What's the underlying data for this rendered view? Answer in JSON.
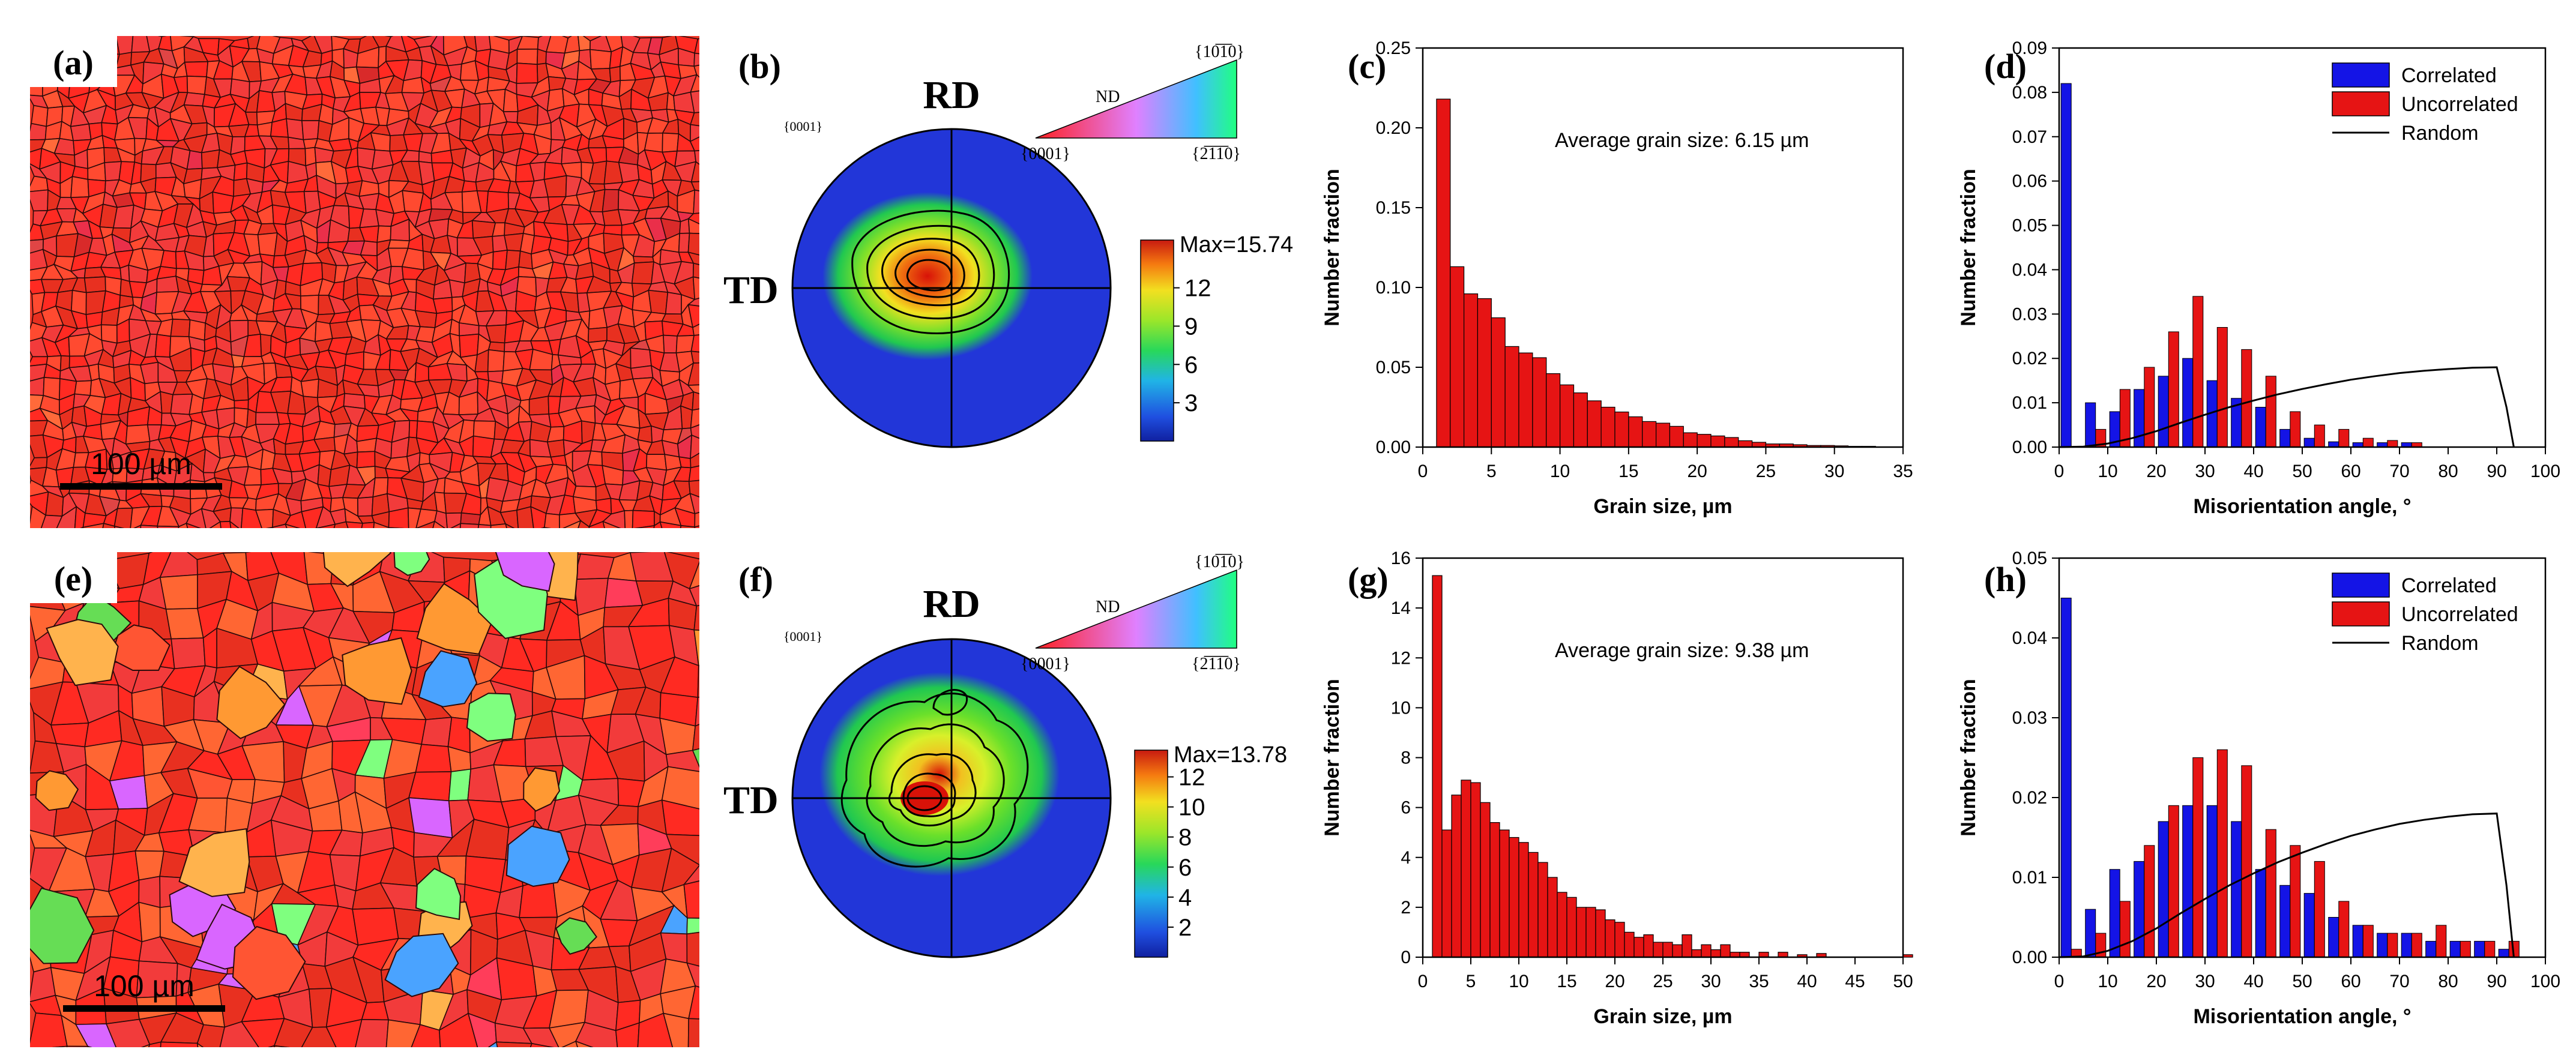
{
  "colors": {
    "correlated": "#1414e6",
    "uncorrelated": "#e61414",
    "grain_bar": "#e61414",
    "random_line": "#000000"
  },
  "panels": [
    {
      "id": "a",
      "label": "(a)",
      "kind": "ebsd-map",
      "scale_bar": "100 µm",
      "palette": [
        "#ff2a22",
        "#f23b3b",
        "#e83020",
        "#ff4a30",
        "#d92a2a",
        "#ff5533",
        "#f04040",
        "#e04545",
        "#ff6a3a",
        "#ea2f4a"
      ]
    },
    {
      "id": "e",
      "label": "(e)",
      "kind": "ebsd-map",
      "scale_bar": "100 µm",
      "palette": [
        "#ff2a22",
        "#f23b3b",
        "#e83020",
        "#ff6633",
        "#ff9933",
        "#ffb34d",
        "#ff3d5a",
        "#7fff7f",
        "#66dd55",
        "#4aa3ff",
        "#d966ff",
        "#ff5533"
      ]
    },
    {
      "id": "b",
      "label": "(b)",
      "kind": "pole-figure",
      "rd": "RD",
      "td": "TD",
      "pole": "{0001}",
      "key_nd": "ND",
      "key_top": "{10̅1̅0}",
      "key_bl": "{0001}",
      "key_br": "{2̅1̅1̅0}",
      "max_label": "Max=15.74",
      "scale_ticks": [
        "12",
        "9",
        "6",
        "3"
      ],
      "max_value": 15.74
    },
    {
      "id": "f",
      "label": "(f)",
      "kind": "pole-figure",
      "rd": "RD",
      "td": "TD",
      "pole": "{0001}",
      "key_nd": "ND",
      "key_top": "{10̅1̅0}",
      "key_bl": "{0001}",
      "key_br": "{2̅1̅1̅0}",
      "max_label": "Max=13.78",
      "scale_ticks": [
        "12",
        "10",
        "8",
        "6",
        "4",
        "2"
      ],
      "max_value": 13.78
    }
  ],
  "chart_data": [
    {
      "id": "c",
      "label": "(c)",
      "type": "bar",
      "title": "",
      "annotation": "Average grain size: 6.15 µm",
      "xlabel": "Grain size, µm",
      "ylabel": "Number fraction",
      "xlim": [
        0,
        35
      ],
      "ylim": [
        0,
        0.25
      ],
      "xticks": [
        "0",
        "5",
        "10",
        "15",
        "20",
        "25",
        "30",
        "35"
      ],
      "yticks": [
        "0.00",
        "0.05",
        "0.10",
        "0.15",
        "0.20",
        "0.25"
      ],
      "bin_width": 1,
      "x": [
        1.5,
        2.5,
        3.5,
        4.5,
        5.5,
        6.5,
        7.5,
        8.5,
        9.5,
        10.5,
        11.5,
        12.5,
        13.5,
        14.5,
        15.5,
        16.5,
        17.5,
        18.5,
        19.5,
        20.5,
        21.5,
        22.5,
        23.5,
        24.5,
        25.5,
        26.5,
        27.5,
        28.5,
        29.5,
        30.5,
        31.5,
        32.5
      ],
      "values": [
        0.218,
        0.113,
        0.096,
        0.093,
        0.081,
        0.063,
        0.059,
        0.056,
        0.046,
        0.039,
        0.034,
        0.029,
        0.025,
        0.022,
        0.019,
        0.016,
        0.015,
        0.013,
        0.009,
        0.008,
        0.007,
        0.006,
        0.004,
        0.003,
        0.002,
        0.002,
        0.0015,
        0.001,
        0.001,
        0.0008,
        0.0005,
        0.0005
      ]
    },
    {
      "id": "d",
      "label": "(d)",
      "type": "bar",
      "xlabel": "Misorientation angle, °",
      "ylabel": "Number fraction",
      "xlim": [
        0,
        100
      ],
      "ylim": [
        0,
        0.09
      ],
      "xticks": [
        "0",
        "10",
        "20",
        "30",
        "40",
        "50",
        "60",
        "70",
        "80",
        "90",
        "100"
      ],
      "yticks": [
        "0.00",
        "0.01",
        "0.02",
        "0.03",
        "0.04",
        "0.05",
        "0.06",
        "0.07",
        "0.08",
        "0.09"
      ],
      "legend": {
        "position": "top-right",
        "entries": [
          "Correlated",
          "Uncorrelated",
          "Random"
        ]
      },
      "centers": [
        2.5,
        7.5,
        12.5,
        17.5,
        22.5,
        27.5,
        32.5,
        37.5,
        42.5,
        47.5,
        52.5,
        57.5,
        62.5,
        67.5,
        72.5,
        77.5,
        82.5,
        87.5,
        92.5
      ],
      "series": [
        {
          "name": "Correlated",
          "values": [
            0.082,
            0.01,
            0.008,
            0.013,
            0.016,
            0.02,
            0.015,
            0.011,
            0.009,
            0.004,
            0.002,
            0.0012,
            0.001,
            0.001,
            0.001,
            0,
            0,
            0,
            0
          ]
        },
        {
          "name": "Uncorrelated",
          "values": [
            0,
            0.004,
            0.013,
            0.018,
            0.026,
            0.034,
            0.027,
            0.022,
            0.016,
            0.008,
            0.005,
            0.004,
            0.002,
            0.0015,
            0.001,
            0,
            0,
            0,
            0
          ]
        }
      ],
      "random_line": {
        "x": [
          0,
          5,
          10,
          15,
          20,
          25,
          30,
          35,
          40,
          45,
          50,
          55,
          60,
          65,
          70,
          75,
          80,
          85,
          90,
          92,
          93.5
        ],
        "y": [
          0,
          0.0001,
          0.0008,
          0.002,
          0.0036,
          0.0055,
          0.0073,
          0.009,
          0.0105,
          0.0119,
          0.0131,
          0.0142,
          0.0152,
          0.016,
          0.0167,
          0.0172,
          0.0176,
          0.0179,
          0.018,
          0.009,
          0
        ]
      }
    },
    {
      "id": "g",
      "label": "(g)",
      "type": "bar",
      "annotation": "Average grain size: 9.38 µm",
      "xlabel": "Grain size, µm",
      "ylabel": "Number fraction",
      "xlim": [
        0,
        50
      ],
      "ylim": [
        0,
        16
      ],
      "xticks": [
        "0",
        "5",
        "10",
        "15",
        "20",
        "25",
        "30",
        "35",
        "40",
        "45",
        "50"
      ],
      "yticks": [
        "0",
        "2",
        "4",
        "6",
        "8",
        "10",
        "12",
        "14",
        "16"
      ],
      "bin_width": 1,
      "x": [
        1.5,
        2.5,
        3.5,
        4.5,
        5.5,
        6.5,
        7.5,
        8.5,
        9.5,
        10.5,
        11.5,
        12.5,
        13.5,
        14.5,
        15.5,
        16.5,
        17.5,
        18.5,
        19.5,
        20.5,
        21.5,
        22.5,
        23.5,
        24.5,
        25.5,
        26.5,
        27.5,
        28.5,
        29.5,
        30.5,
        31.5,
        32.5,
        33.5,
        35.5,
        37.5,
        39.5,
        41.5,
        50.5
      ],
      "values": [
        15.3,
        5.1,
        6.5,
        7.1,
        7.0,
        6.2,
        5.4,
        5.1,
        4.8,
        4.6,
        4.2,
        3.8,
        3.2,
        2.6,
        2.4,
        2.0,
        2.0,
        1.9,
        1.5,
        1.4,
        1.0,
        0.8,
        0.9,
        0.6,
        0.6,
        0.5,
        0.9,
        0.3,
        0.5,
        0.3,
        0.5,
        0.2,
        0.2,
        0.2,
        0.2,
        0.1,
        0.15,
        0.1
      ]
    },
    {
      "id": "h",
      "label": "(h)",
      "type": "bar",
      "xlabel": "Misorientation angle, °",
      "ylabel": "Number fraction",
      "xlim": [
        0,
        100
      ],
      "ylim": [
        0,
        0.05
      ],
      "xticks": [
        "0",
        "10",
        "20",
        "30",
        "40",
        "50",
        "60",
        "70",
        "80",
        "90",
        "100"
      ],
      "yticks": [
        "0.00",
        "0.01",
        "0.02",
        "0.03",
        "0.04",
        "0.05"
      ],
      "legend": {
        "position": "top-right",
        "entries": [
          "Correlated",
          "Uncorrelated",
          "Random"
        ]
      },
      "centers": [
        2.5,
        7.5,
        12.5,
        17.5,
        22.5,
        27.5,
        32.5,
        37.5,
        42.5,
        47.5,
        52.5,
        57.5,
        62.5,
        67.5,
        72.5,
        77.5,
        82.5,
        87.5,
        92.5
      ],
      "series": [
        {
          "name": "Correlated",
          "values": [
            0.045,
            0.006,
            0.011,
            0.012,
            0.017,
            0.019,
            0.019,
            0.017,
            0.011,
            0.009,
            0.008,
            0.005,
            0.004,
            0.003,
            0.003,
            0.002,
            0.002,
            0.002,
            0.001
          ]
        },
        {
          "name": "Uncorrelated",
          "values": [
            0.001,
            0.003,
            0.007,
            0.014,
            0.019,
            0.025,
            0.026,
            0.024,
            0.016,
            0.014,
            0.012,
            0.007,
            0.004,
            0.003,
            0.003,
            0.004,
            0.002,
            0.002,
            0.002
          ]
        }
      ],
      "random_line": {
        "x": [
          0,
          5,
          10,
          15,
          20,
          25,
          30,
          35,
          40,
          45,
          50,
          55,
          60,
          65,
          70,
          75,
          80,
          85,
          90,
          92,
          93.5
        ],
        "y": [
          0,
          0.0001,
          0.0008,
          0.002,
          0.0036,
          0.0055,
          0.0073,
          0.009,
          0.0105,
          0.0119,
          0.0131,
          0.0142,
          0.0152,
          0.016,
          0.0167,
          0.0172,
          0.0176,
          0.0179,
          0.018,
          0.009,
          0
        ]
      }
    }
  ]
}
